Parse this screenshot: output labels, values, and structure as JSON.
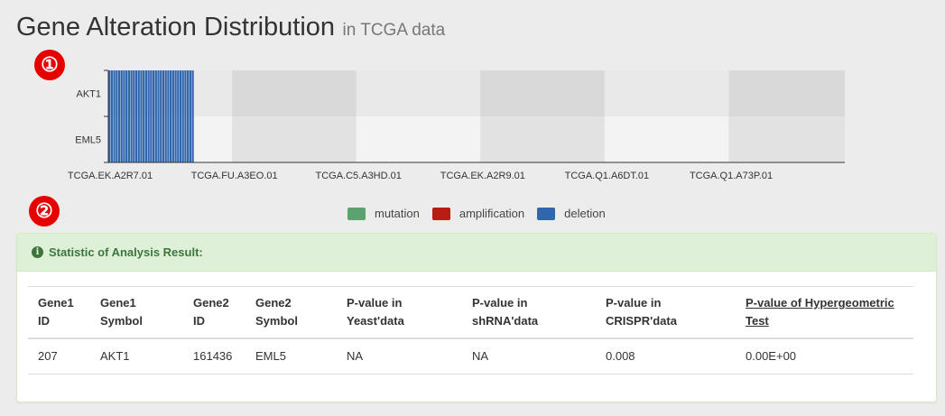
{
  "header": {
    "title": "Gene Alteration Distribution",
    "subtitle": "in TCGA data"
  },
  "badges": [
    "①",
    "②"
  ],
  "chart_data": {
    "type": "heatmap",
    "genes": [
      "AKT1",
      "EML5"
    ],
    "x_tick_labels": [
      "TCGA.EK.A2R7.01",
      "TCGA.FU.A3EO.01",
      "TCGA.C5.A3HD.01",
      "TCGA.EK.A2R9.01",
      "TCGA.Q1.A6DT.01",
      "TCGA.Q1.A73P.01"
    ],
    "sample_count": 300,
    "altered_samples": 35,
    "rows": [
      {
        "gene": "AKT1",
        "alteration": "deletion",
        "altered_samples": 35
      },
      {
        "gene": "EML5",
        "alteration": "deletion",
        "altered_samples": 35
      }
    ],
    "legend": [
      {
        "label": "mutation",
        "color": "#5ba36e"
      },
      {
        "label": "amplification",
        "color": "#b81c12"
      },
      {
        "label": "deletion",
        "color": "#2f66ad"
      }
    ],
    "colors": {
      "deletion": "#2f66ad",
      "band_a_row1": "#d9d9d9",
      "band_b_row1": "#e9e9e9",
      "band_a_row2": "#e2e2e2",
      "band_b_row2": "#f3f3f3"
    }
  },
  "panel": {
    "heading": "Statistic of Analysis Result:",
    "columns": [
      [
        "Gene1",
        "ID"
      ],
      [
        "Gene1",
        "Symbol"
      ],
      [
        "Gene2",
        "ID"
      ],
      [
        "Gene2",
        "Symbol"
      ],
      [
        "P-value in",
        "Yeast'data"
      ],
      [
        "P-value in",
        "shRNA'data"
      ],
      [
        "P-value in",
        "CRISPR'data"
      ],
      [
        "P-value of Hypergeometric",
        "Test"
      ]
    ],
    "rows": [
      [
        "207",
        "AKT1",
        "161436",
        "EML5",
        "NA",
        "NA",
        "0.008",
        "0.00E+00"
      ]
    ]
  }
}
